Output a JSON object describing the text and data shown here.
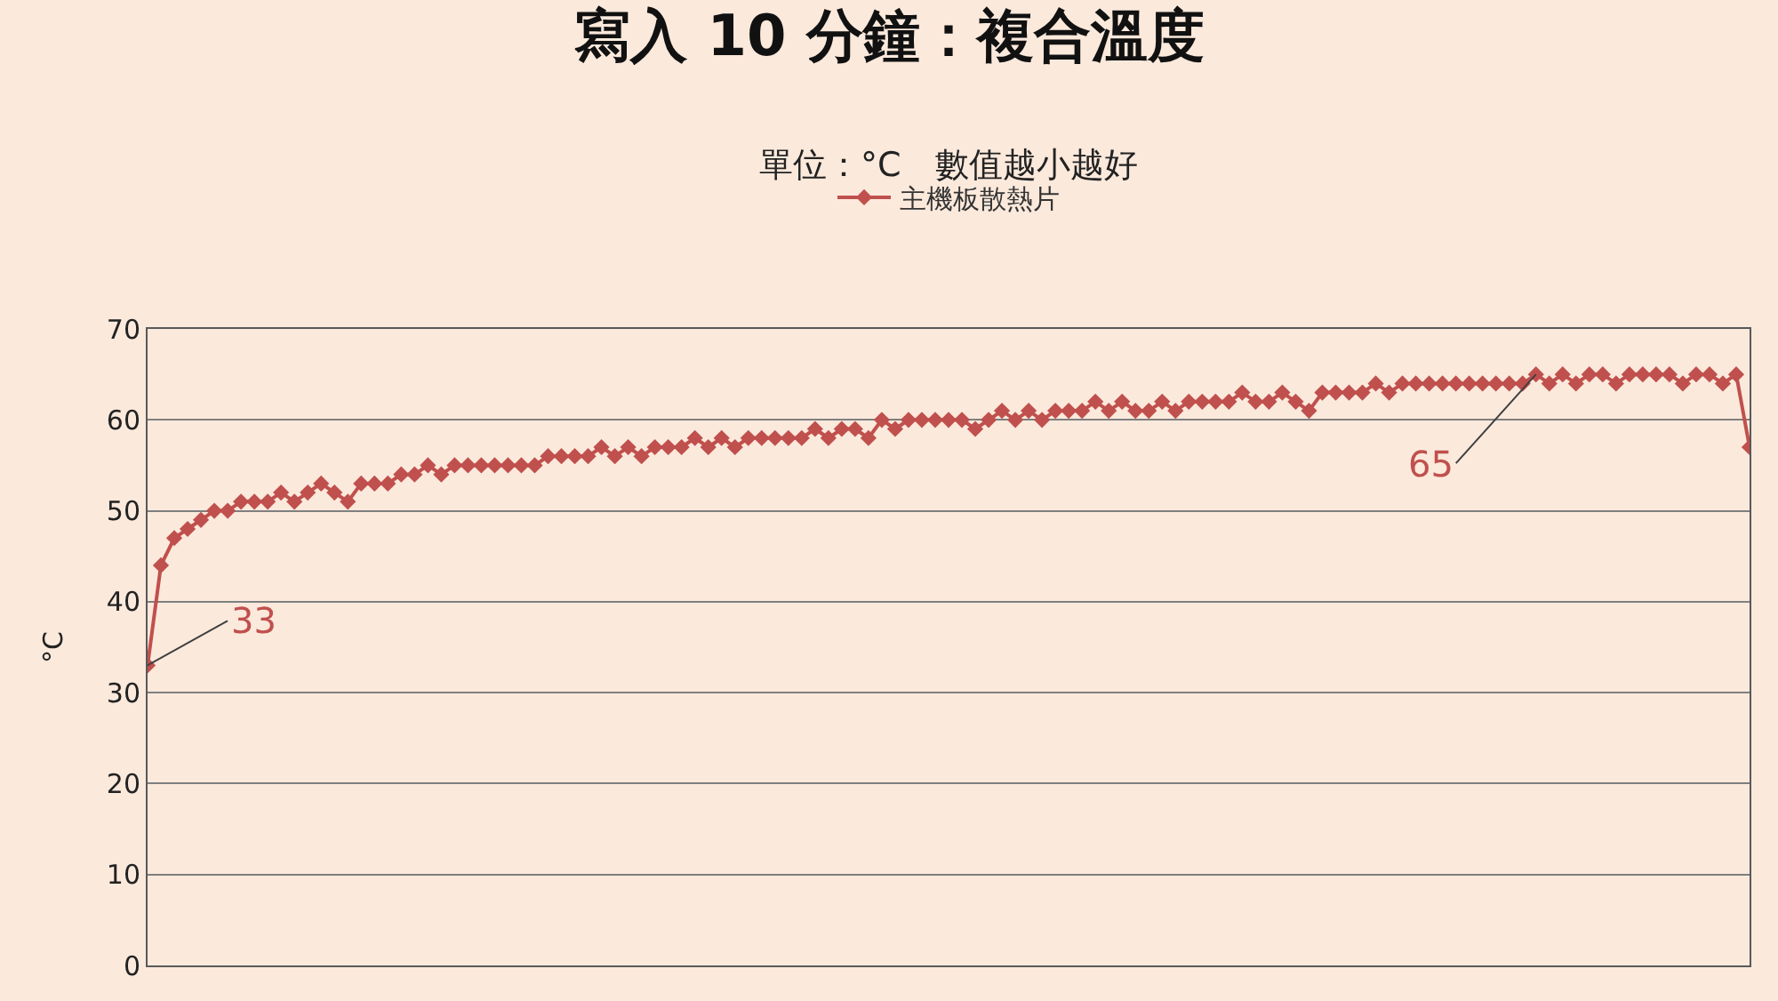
{
  "chart_data": {
    "type": "line",
    "title": "寫入 10 分鐘：複合溫度",
    "subtitle": "單位：°C　數值越小越好",
    "ylabel": "°C",
    "categories": [
      null,
      null,
      null,
      null,
      null,
      null,
      null,
      null,
      null,
      null,
      null,
      null,
      null,
      null,
      null,
      null,
      null,
      null,
      null,
      null,
      null,
      null,
      null,
      null,
      null,
      null,
      null,
      null,
      null,
      null,
      null,
      null,
      null,
      null,
      null,
      null,
      null,
      null,
      null,
      null,
      null,
      null,
      null,
      null,
      null,
      null,
      null,
      null,
      null,
      null,
      null,
      null,
      null,
      null,
      null,
      null,
      null,
      null,
      null,
      null,
      null,
      null,
      null,
      null,
      null,
      null,
      null,
      null,
      null,
      null,
      null,
      null,
      null,
      null,
      null,
      null,
      null,
      null,
      null,
      null,
      null,
      null,
      null,
      null,
      null,
      null,
      null,
      null,
      null,
      null,
      null,
      null,
      null,
      null,
      null,
      null,
      null,
      null,
      null,
      null,
      null,
      null,
      null,
      null,
      null,
      null,
      null,
      null,
      null,
      null,
      null,
      null,
      null,
      null,
      null,
      null,
      null,
      null,
      null,
      null,
      null
    ],
    "series": [
      {
        "name": "主機板散熱片",
        "color": "#c0504d",
        "values": [
          33,
          44,
          47,
          48,
          49,
          50,
          50,
          51,
          51,
          51,
          52,
          51,
          52,
          53,
          52,
          51,
          53,
          53,
          53,
          54,
          54,
          55,
          54,
          55,
          55,
          55,
          55,
          55,
          55,
          55,
          56,
          56,
          56,
          56,
          57,
          56,
          57,
          56,
          57,
          57,
          57,
          58,
          57,
          58,
          57,
          58,
          58,
          58,
          58,
          58,
          59,
          58,
          59,
          59,
          58,
          60,
          59,
          60,
          60,
          60,
          60,
          60,
          59,
          60,
          61,
          60,
          61,
          60,
          61,
          61,
          61,
          62,
          61,
          62,
          61,
          61,
          62,
          61,
          62,
          62,
          62,
          62,
          63,
          62,
          62,
          63,
          62,
          61,
          63,
          63,
          63,
          63,
          64,
          63,
          64,
          64,
          64,
          64,
          64,
          64,
          64,
          64,
          64,
          64,
          65,
          64,
          65,
          64,
          65,
          65,
          64,
          65,
          65,
          65,
          65,
          64,
          65,
          65,
          64,
          65,
          57
        ],
        "value_labels": [
          "33",
          null,
          null,
          null,
          null,
          null,
          null,
          null,
          null,
          null,
          null,
          null,
          null,
          null,
          null,
          null,
          null,
          null,
          null,
          null,
          null,
          null,
          null,
          null,
          null,
          null,
          null,
          null,
          null,
          null,
          null,
          null,
          null,
          null,
          null,
          null,
          null,
          null,
          null,
          null,
          null,
          null,
          null,
          null,
          null,
          null,
          null,
          null,
          null,
          null,
          null,
          null,
          null,
          null,
          null,
          null,
          null,
          null,
          null,
          null,
          null,
          null,
          null,
          null,
          null,
          null,
          null,
          null,
          null,
          null,
          null,
          null,
          null,
          null,
          null,
          null,
          null,
          null,
          null,
          null,
          null,
          null,
          null,
          null,
          null,
          null,
          null,
          null,
          null,
          null,
          null,
          null,
          null,
          null,
          null,
          null,
          null,
          null,
          null,
          null,
          null,
          null,
          null,
          null,
          "65",
          null,
          null,
          null,
          null,
          null,
          null,
          null,
          null,
          null,
          null,
          null,
          null,
          null,
          null,
          null,
          null
        ]
      }
    ],
    "ylim": [
      0,
      70
    ],
    "yticks": [
      0,
      10,
      20,
      30,
      40,
      50,
      60,
      70
    ],
    "grid": "y",
    "legend": "top",
    "marker": "diamond",
    "line_style": "solid"
  }
}
